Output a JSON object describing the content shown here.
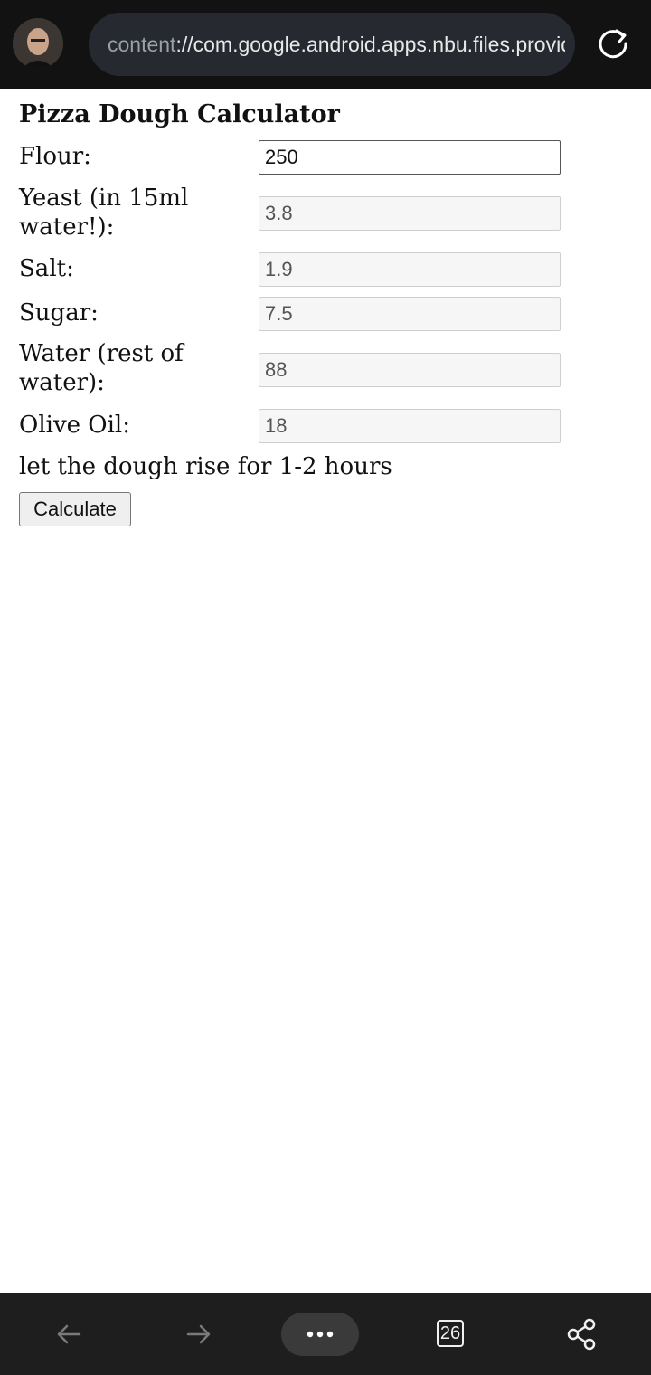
{
  "browser": {
    "url_scheme": "content",
    "url_rest": "://com.google.android.apps.nbu.files.provider",
    "tab_count": "26"
  },
  "page": {
    "title": "Pizza Dough Calculator",
    "fields": [
      {
        "label": "Flour:",
        "value": "250"
      },
      {
        "label": "Yeast (in 15ml water!):",
        "value": "3.8"
      },
      {
        "label": "Salt:",
        "value": "1.9"
      },
      {
        "label": "Sugar:",
        "value": "7.5"
      },
      {
        "label": "Water (rest of water):",
        "value": "88"
      },
      {
        "label": "Olive Oil:",
        "value": "18"
      }
    ],
    "note": "let the dough rise for 1-2 hours",
    "calculate_label": "Calculate"
  }
}
